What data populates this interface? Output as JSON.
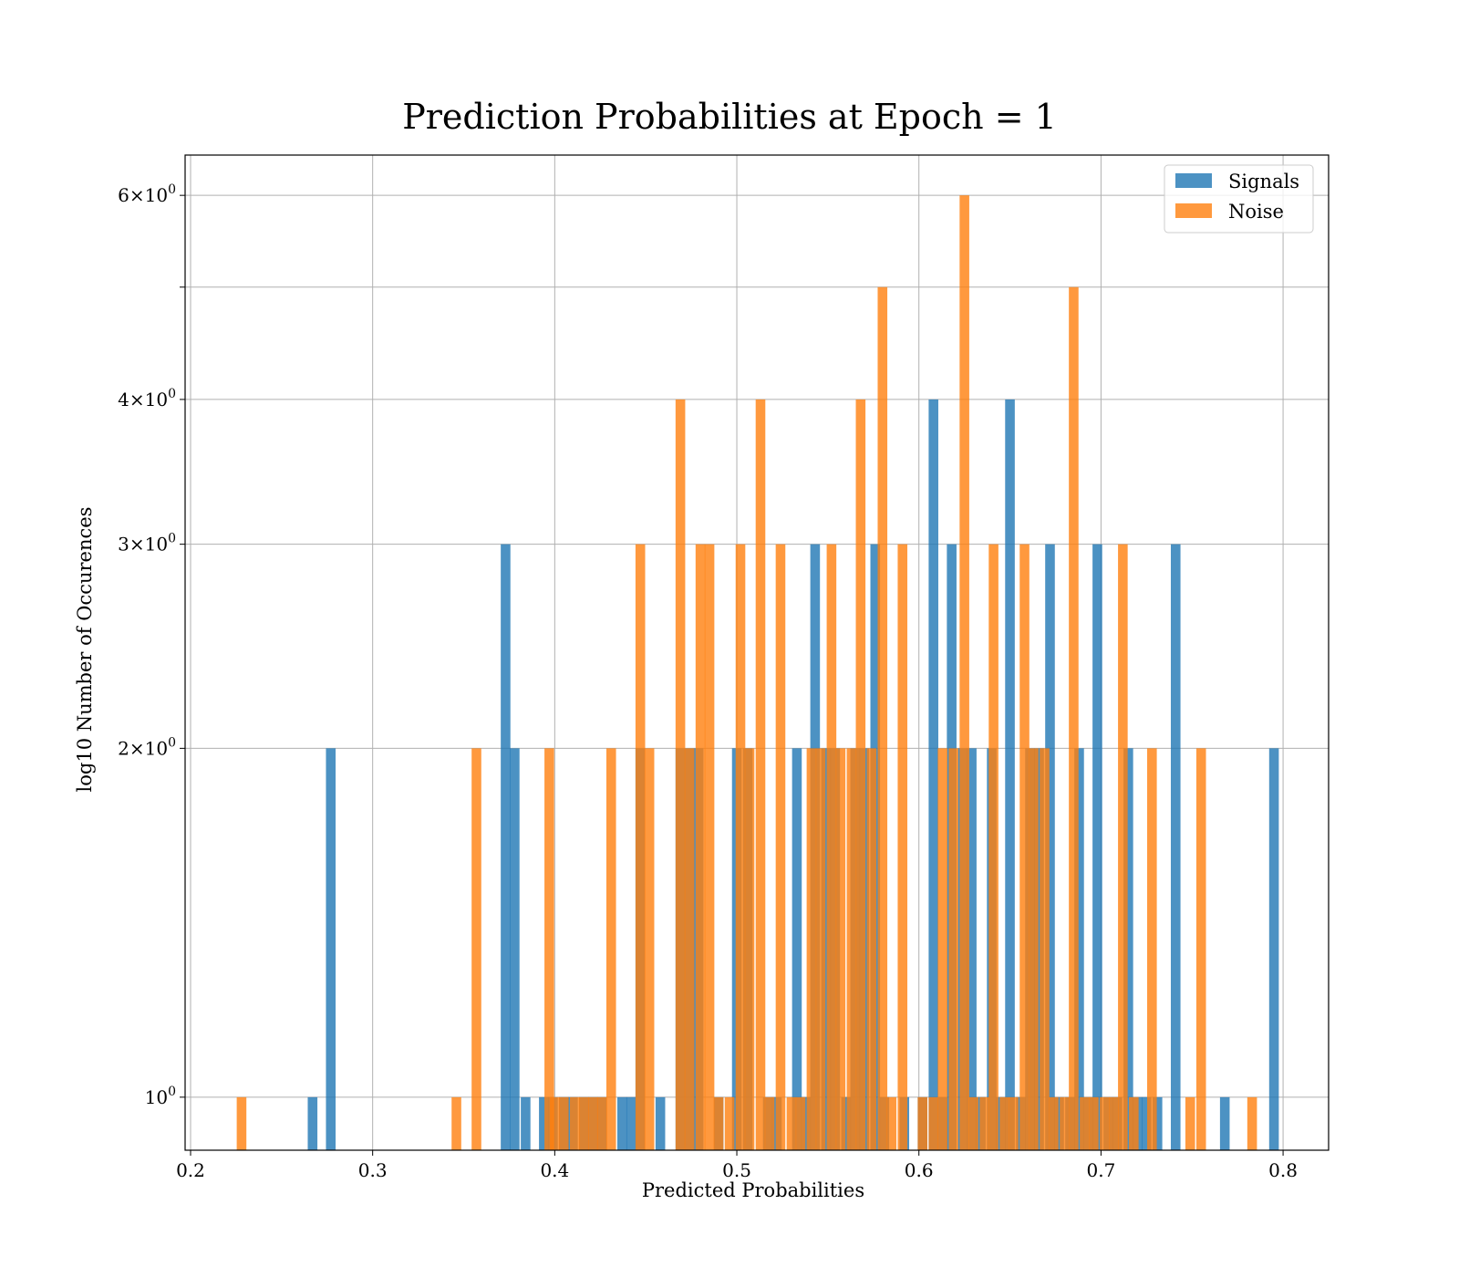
{
  "chart_data": {
    "type": "bar",
    "title": "Prediction Probabilities at Epoch = 1",
    "xlabel": "Predicted Probabilities",
    "ylabel": "log10 Number of Occurences",
    "y_scale": "log",
    "xlim": [
      0.197,
      0.825
    ],
    "ylim": [
      0.9,
      6.5
    ],
    "x_ticks": [
      0.2,
      0.3,
      0.4,
      0.5,
      0.6,
      0.7,
      0.8
    ],
    "x_tick_labels": [
      "0.2",
      "0.3",
      "0.4",
      "0.5",
      "0.6",
      "0.7",
      "0.8"
    ],
    "y_ticks": [
      1,
      2,
      3,
      4,
      5,
      6
    ],
    "y_tick_labels": [
      {
        "mantissa": "",
        "exp": "0",
        "value": 1
      },
      {
        "mantissa": "2",
        "exp": "0",
        "value": 2
      },
      {
        "mantissa": "3",
        "exp": "0",
        "value": 3
      },
      {
        "mantissa": "4",
        "exp": "0",
        "value": 4
      },
      {
        "mantissa": "",
        "exp": "",
        "value": 5
      },
      {
        "mantissa": "6",
        "exp": "0",
        "value": 6
      }
    ],
    "grid": true,
    "legend_position": "top-right",
    "bin_width": 0.0053,
    "series": [
      {
        "name": "Signals",
        "color": "#1f77b4",
        "opacity": 0.8,
        "bins": [
          [
            0.267,
            1
          ],
          [
            0.277,
            2
          ],
          [
            0.373,
            3
          ],
          [
            0.378,
            2
          ],
          [
            0.384,
            1
          ],
          [
            0.394,
            1
          ],
          [
            0.399,
            1
          ],
          [
            0.405,
            1
          ],
          [
            0.41,
            1
          ],
          [
            0.416,
            1
          ],
          [
            0.421,
            1
          ],
          [
            0.426,
            1
          ],
          [
            0.437,
            1
          ],
          [
            0.442,
            1
          ],
          [
            0.447,
            2
          ],
          [
            0.458,
            1
          ],
          [
            0.469,
            2
          ],
          [
            0.474,
            2
          ],
          [
            0.479,
            2
          ],
          [
            0.49,
            1
          ],
          [
            0.5,
            2
          ],
          [
            0.506,
            2
          ],
          [
            0.517,
            1
          ],
          [
            0.522,
            1
          ],
          [
            0.533,
            2
          ],
          [
            0.538,
            1
          ],
          [
            0.543,
            3
          ],
          [
            0.549,
            2
          ],
          [
            0.554,
            2
          ],
          [
            0.56,
            1
          ],
          [
            0.565,
            2
          ],
          [
            0.57,
            2
          ],
          [
            0.576,
            3
          ],
          [
            0.581,
            1
          ],
          [
            0.592,
            1
          ],
          [
            0.602,
            1
          ],
          [
            0.608,
            4
          ],
          [
            0.613,
            1
          ],
          [
            0.618,
            3
          ],
          [
            0.624,
            2
          ],
          [
            0.629,
            2
          ],
          [
            0.634,
            1
          ],
          [
            0.64,
            2
          ],
          [
            0.645,
            1
          ],
          [
            0.65,
            4
          ],
          [
            0.656,
            1
          ],
          [
            0.661,
            2
          ],
          [
            0.666,
            2
          ],
          [
            0.672,
            3
          ],
          [
            0.677,
            1
          ],
          [
            0.683,
            1
          ],
          [
            0.688,
            2
          ],
          [
            0.693,
            1
          ],
          [
            0.698,
            3
          ],
          [
            0.704,
            1
          ],
          [
            0.709,
            1
          ],
          [
            0.715,
            2
          ],
          [
            0.72,
            1
          ],
          [
            0.725,
            1
          ],
          [
            0.731,
            1
          ],
          [
            0.741,
            3
          ],
          [
            0.768,
            1
          ],
          [
            0.795,
            2
          ]
        ]
      },
      {
        "name": "Noise",
        "color": "#ff7f0e",
        "opacity": 0.8,
        "bins": [
          [
            0.228,
            1
          ],
          [
            0.346,
            1
          ],
          [
            0.357,
            2
          ],
          [
            0.397,
            2
          ],
          [
            0.4,
            1
          ],
          [
            0.405,
            1
          ],
          [
            0.411,
            1
          ],
          [
            0.416,
            1
          ],
          [
            0.421,
            1
          ],
          [
            0.426,
            1
          ],
          [
            0.431,
            2
          ],
          [
            0.447,
            3
          ],
          [
            0.452,
            2
          ],
          [
            0.469,
            4
          ],
          [
            0.474,
            2
          ],
          [
            0.48,
            3
          ],
          [
            0.485,
            3
          ],
          [
            0.49,
            1
          ],
          [
            0.496,
            1
          ],
          [
            0.502,
            3
          ],
          [
            0.507,
            2
          ],
          [
            0.513,
            4
          ],
          [
            0.518,
            1
          ],
          [
            0.524,
            3
          ],
          [
            0.53,
            1
          ],
          [
            0.535,
            1
          ],
          [
            0.541,
            2
          ],
          [
            0.546,
            2
          ],
          [
            0.552,
            3
          ],
          [
            0.557,
            2
          ],
          [
            0.563,
            2
          ],
          [
            0.568,
            4
          ],
          [
            0.574,
            2
          ],
          [
            0.58,
            5
          ],
          [
            0.585,
            1
          ],
          [
            0.591,
            3
          ],
          [
            0.602,
            1
          ],
          [
            0.608,
            1
          ],
          [
            0.613,
            2
          ],
          [
            0.619,
            2
          ],
          [
            0.625,
            6
          ],
          [
            0.63,
            1
          ],
          [
            0.636,
            1
          ],
          [
            0.641,
            3
          ],
          [
            0.647,
            1
          ],
          [
            0.652,
            1
          ],
          [
            0.658,
            3
          ],
          [
            0.663,
            2
          ],
          [
            0.669,
            2
          ],
          [
            0.674,
            1
          ],
          [
            0.68,
            1
          ],
          [
            0.685,
            5
          ],
          [
            0.691,
            1
          ],
          [
            0.696,
            1
          ],
          [
            0.702,
            1
          ],
          [
            0.707,
            1
          ],
          [
            0.712,
            3
          ],
          [
            0.718,
            1
          ],
          [
            0.728,
            2
          ],
          [
            0.749,
            1
          ],
          [
            0.755,
            2
          ],
          [
            0.783,
            1
          ]
        ]
      }
    ]
  }
}
